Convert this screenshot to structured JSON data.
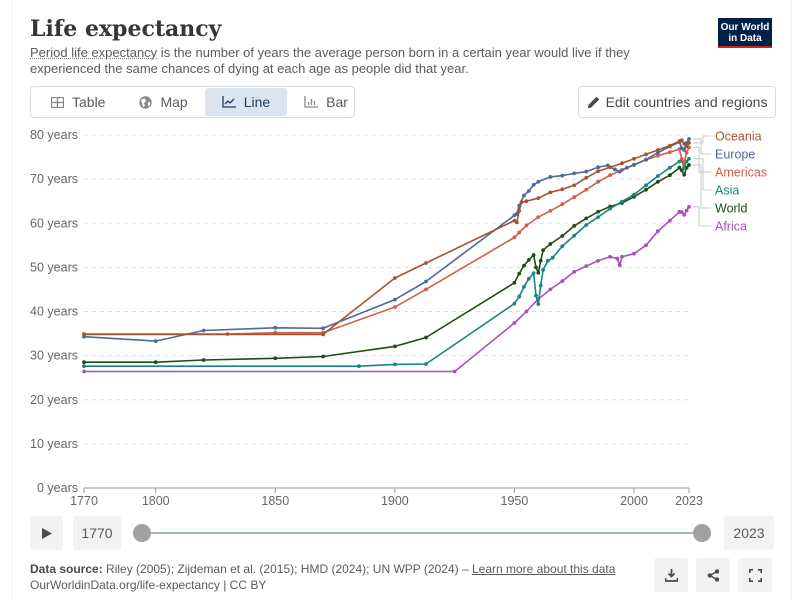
{
  "header": {
    "title": "Life expectancy",
    "subtitle_link": "Period life expectancy",
    "subtitle_rest": " is the number of years the average person born in a certain year would live if they experienced the same chances of dying at each age as people did that year.",
    "logo_line1": "Our World",
    "logo_line2": "in Data"
  },
  "tabs": [
    {
      "label": "Table",
      "icon": "table-icon",
      "active": false
    },
    {
      "label": "Map",
      "icon": "globe-icon",
      "active": false
    },
    {
      "label": "Line",
      "icon": "line-chart-icon",
      "active": true
    },
    {
      "label": "Bar",
      "icon": "bar-chart-icon",
      "active": false
    }
  ],
  "edit_button": {
    "label": "Edit countries and regions",
    "icon": "pencil-icon"
  },
  "timeline": {
    "start_year": "1770",
    "end_year": "2023",
    "play_icon": "play-icon"
  },
  "footer": {
    "source_label": "Data source:",
    "source_text": " Riley (2005); Zijdeman et al. (2015); HMD (2024); UN WPP (2024) – ",
    "learn_more": "Learn more about this data",
    "url_line": "OurWorldinData.org/life-expectancy | CC BY",
    "buttons": [
      {
        "name": "download-button",
        "icon": "download-icon"
      },
      {
        "name": "share-button",
        "icon": "share-icon"
      },
      {
        "name": "fullscreen-button",
        "icon": "fullscreen-icon"
      }
    ]
  },
  "colors": {
    "Oceania": "#a2552d",
    "Europe": "#4c6a9c",
    "Americas": "#d25e48",
    "Asia": "#18857f",
    "World": "#1f4d14",
    "Africa": "#a652ba",
    "active_tab_bg": "#dbe5f0",
    "logo_bg": "#002147"
  },
  "chart_data": {
    "type": "line",
    "title": "Life expectancy",
    "xlabel": "",
    "ylabel": "",
    "xlim": [
      1770,
      2023
    ],
    "ylim": [
      0,
      80
    ],
    "x_ticks": [
      "1770",
      "1800",
      "1850",
      "1900",
      "1950",
      "2000",
      "2023"
    ],
    "y_ticks": [
      "0 years",
      "10 years",
      "20 years",
      "30 years",
      "40 years",
      "50 years",
      "60 years",
      "70 years",
      "80 years"
    ],
    "grid": true,
    "legend": "right (inline labels)",
    "legend_order": [
      "Oceania",
      "Europe",
      "Americas",
      "Asia",
      "World",
      "Africa"
    ],
    "series": [
      {
        "name": "Oceania",
        "points": [
          [
            1770,
            34.8
          ],
          [
            1870,
            34.8
          ],
          [
            1900,
            47.6
          ],
          [
            1913,
            51.0
          ],
          [
            1950,
            60.6
          ],
          [
            1951,
            60.2
          ],
          [
            1952,
            62.8
          ],
          [
            1953,
            64.8
          ],
          [
            1955,
            65.0
          ],
          [
            1960,
            65.7
          ],
          [
            1965,
            67.0
          ],
          [
            1970,
            67.7
          ],
          [
            1975,
            68.6
          ],
          [
            1980,
            70.3
          ],
          [
            1985,
            71.8
          ],
          [
            1990,
            72.7
          ],
          [
            1995,
            73.6
          ],
          [
            2000,
            74.6
          ],
          [
            2005,
            75.6
          ],
          [
            2010,
            76.6
          ],
          [
            2015,
            77.6
          ],
          [
            2019,
            78.6
          ],
          [
            2020,
            78.8
          ],
          [
            2021,
            78.0
          ],
          [
            2022,
            77.4
          ],
          [
            2023,
            78.2
          ]
        ]
      },
      {
        "name": "Europe",
        "points": [
          [
            1770,
            34.3
          ],
          [
            1800,
            33.3
          ],
          [
            1820,
            35.7
          ],
          [
            1850,
            36.3
          ],
          [
            1870,
            36.2
          ],
          [
            1900,
            42.7
          ],
          [
            1913,
            46.8
          ],
          [
            1950,
            61.8
          ],
          [
            1951,
            62.1
          ],
          [
            1952,
            64.0
          ],
          [
            1954,
            66.3
          ],
          [
            1956,
            67.3
          ],
          [
            1958,
            68.7
          ],
          [
            1960,
            69.4
          ],
          [
            1965,
            70.5
          ],
          [
            1970,
            70.8
          ],
          [
            1975,
            71.3
          ],
          [
            1980,
            71.7
          ],
          [
            1985,
            72.7
          ],
          [
            1989,
            73.1
          ],
          [
            1992,
            72.2
          ],
          [
            1994,
            71.7
          ],
          [
            1997,
            72.6
          ],
          [
            2000,
            73.2
          ],
          [
            2005,
            74.4
          ],
          [
            2010,
            76.0
          ],
          [
            2015,
            77.4
          ],
          [
            2019,
            78.4
          ],
          [
            2020,
            77.0
          ],
          [
            2021,
            76.6
          ],
          [
            2022,
            78.2
          ],
          [
            2023,
            79.1
          ]
        ]
      },
      {
        "name": "Americas",
        "points": [
          [
            1770,
            34.9
          ],
          [
            1830,
            34.9
          ],
          [
            1850,
            35.2
          ],
          [
            1870,
            35.2
          ],
          [
            1900,
            41.0
          ],
          [
            1913,
            45.0
          ],
          [
            1950,
            56.8
          ],
          [
            1952,
            57.9
          ],
          [
            1955,
            59.5
          ],
          [
            1960,
            61.4
          ],
          [
            1965,
            62.8
          ],
          [
            1970,
            64.3
          ],
          [
            1975,
            65.9
          ],
          [
            1980,
            67.6
          ],
          [
            1985,
            69.4
          ],
          [
            1990,
            70.9
          ],
          [
            1995,
            72.1
          ],
          [
            2000,
            73.3
          ],
          [
            2005,
            74.4
          ],
          [
            2010,
            75.3
          ],
          [
            2015,
            76.1
          ],
          [
            2019,
            76.8
          ],
          [
            2020,
            74.6
          ],
          [
            2021,
            73.6
          ],
          [
            2022,
            76.0
          ],
          [
            2023,
            77.2
          ]
        ]
      },
      {
        "name": "Asia",
        "points": [
          [
            1770,
            27.6
          ],
          [
            1885,
            27.6
          ],
          [
            1900,
            28.0
          ],
          [
            1913,
            28.1
          ],
          [
            1950,
            41.8
          ],
          [
            1952,
            43.4
          ],
          [
            1954,
            45.6
          ],
          [
            1956,
            47.4
          ],
          [
            1958,
            48.7
          ],
          [
            1959,
            43.6
          ],
          [
            1960,
            41.7
          ],
          [
            1961,
            45.9
          ],
          [
            1962,
            49.4
          ],
          [
            1964,
            51.5
          ],
          [
            1966,
            52.2
          ],
          [
            1970,
            54.8
          ],
          [
            1975,
            57.2
          ],
          [
            1980,
            59.6
          ],
          [
            1985,
            61.4
          ],
          [
            1990,
            63.3
          ],
          [
            1995,
            64.9
          ],
          [
            2000,
            66.5
          ],
          [
            2005,
            68.6
          ],
          [
            2010,
            70.7
          ],
          [
            2015,
            72.6
          ],
          [
            2019,
            74.0
          ],
          [
            2020,
            74.2
          ],
          [
            2021,
            72.6
          ],
          [
            2022,
            74.0
          ],
          [
            2023,
            74.6
          ]
        ]
      },
      {
        "name": "World",
        "points": [
          [
            1770,
            28.5
          ],
          [
            1800,
            28.5
          ],
          [
            1820,
            29.0
          ],
          [
            1850,
            29.4
          ],
          [
            1870,
            29.8
          ],
          [
            1900,
            32.1
          ],
          [
            1913,
            34.1
          ],
          [
            1950,
            46.5
          ],
          [
            1952,
            48.6
          ],
          [
            1954,
            50.4
          ],
          [
            1956,
            51.7
          ],
          [
            1958,
            52.8
          ],
          [
            1959,
            50.0
          ],
          [
            1960,
            48.8
          ],
          [
            1961,
            51.5
          ],
          [
            1962,
            53.9
          ],
          [
            1965,
            55.3
          ],
          [
            1970,
            57.1
          ],
          [
            1975,
            59.4
          ],
          [
            1980,
            61.1
          ],
          [
            1985,
            62.6
          ],
          [
            1990,
            63.8
          ],
          [
            1995,
            64.6
          ],
          [
            2000,
            66.0
          ],
          [
            2005,
            67.6
          ],
          [
            2010,
            69.4
          ],
          [
            2015,
            70.9
          ],
          [
            2019,
            72.6
          ],
          [
            2020,
            72.0
          ],
          [
            2021,
            71.0
          ],
          [
            2022,
            72.6
          ],
          [
            2023,
            73.2
          ]
        ]
      },
      {
        "name": "Africa",
        "points": [
          [
            1770,
            26.4
          ],
          [
            1925,
            26.4
          ],
          [
            1950,
            37.4
          ],
          [
            1955,
            40.0
          ],
          [
            1960,
            42.8
          ],
          [
            1965,
            45.0
          ],
          [
            1970,
            46.9
          ],
          [
            1975,
            49.0
          ],
          [
            1980,
            50.3
          ],
          [
            1985,
            51.5
          ],
          [
            1990,
            52.4
          ],
          [
            1993,
            52.0
          ],
          [
            1994,
            50.5
          ],
          [
            1995,
            52.4
          ],
          [
            2000,
            53.1
          ],
          [
            2005,
            55.0
          ],
          [
            2010,
            58.2
          ],
          [
            2015,
            60.6
          ],
          [
            2019,
            62.6
          ],
          [
            2020,
            62.5
          ],
          [
            2021,
            61.9
          ],
          [
            2022,
            62.9
          ],
          [
            2023,
            63.7
          ]
        ]
      }
    ]
  }
}
